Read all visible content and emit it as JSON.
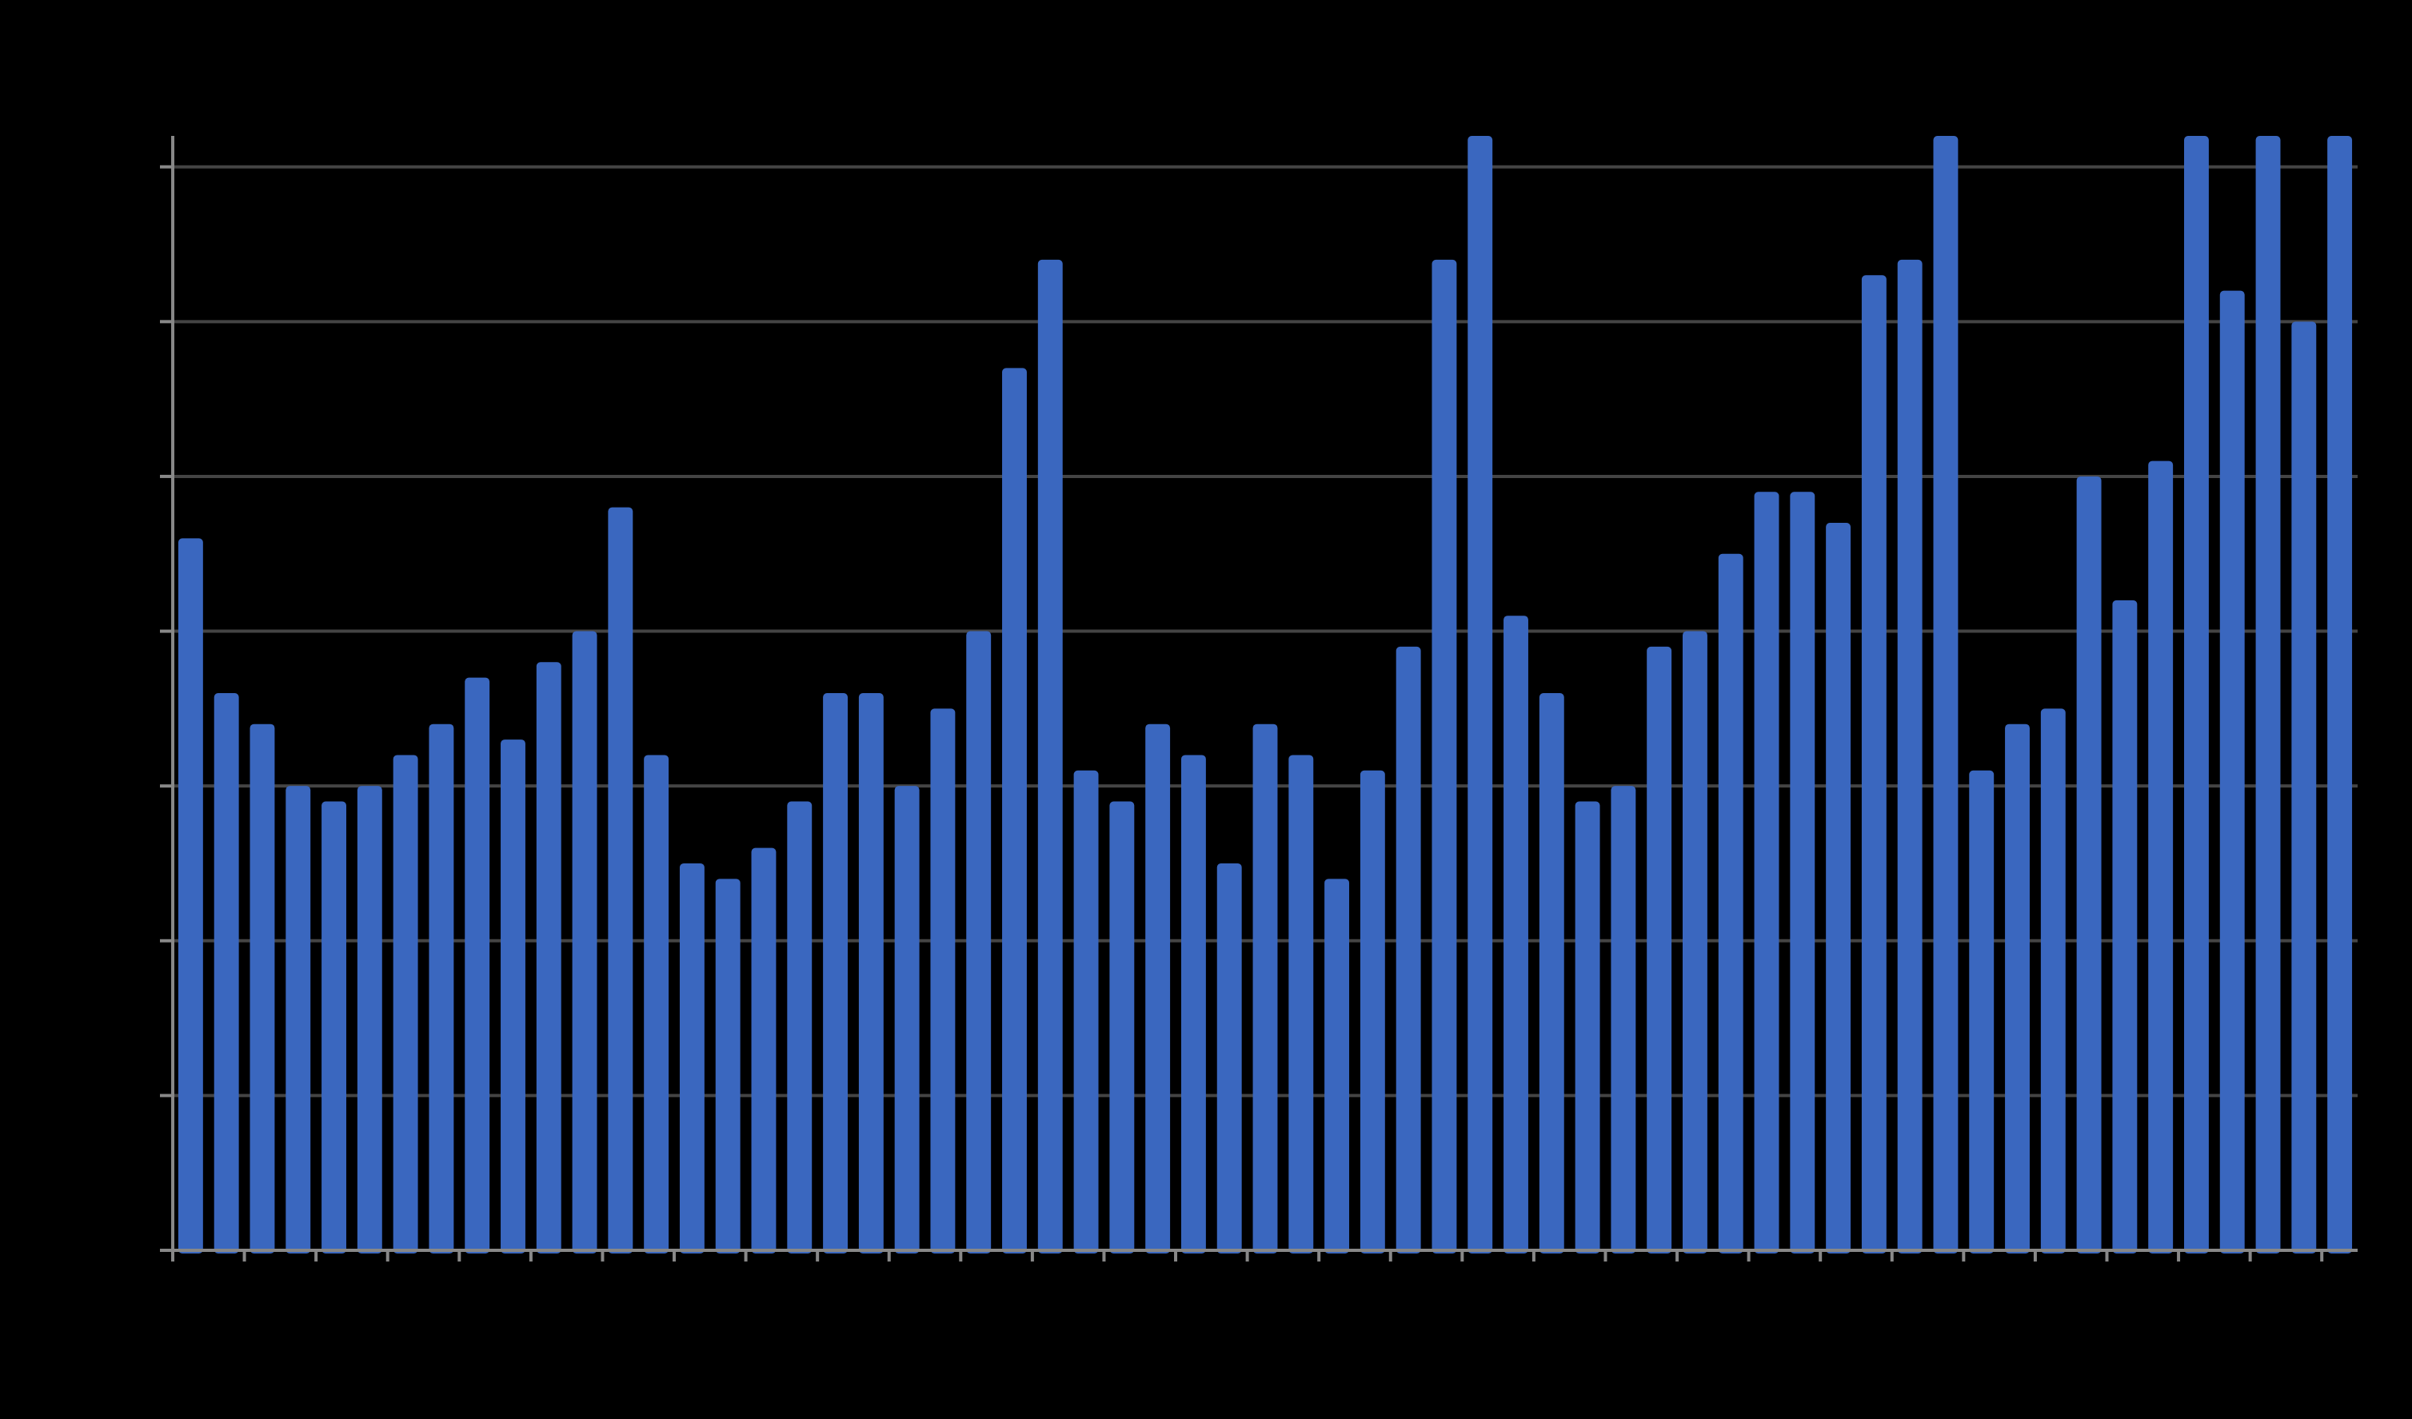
{
  "chart_data": {
    "type": "bar",
    "title": "",
    "xlabel": "",
    "ylabel": "",
    "ylim": [
      0,
      7.2
    ],
    "y_gridlines": [
      1,
      2,
      3,
      4,
      5,
      6,
      7
    ],
    "grid": true,
    "x_tick_every": 2,
    "bar_color": "#3a67bf",
    "background": "#000000",
    "values": [
      4.6,
      3.6,
      3.4,
      3.0,
      2.9,
      3.0,
      3.2,
      3.4,
      3.7,
      3.3,
      3.8,
      4.0,
      4.8,
      3.2,
      2.5,
      2.4,
      2.6,
      2.9,
      3.6,
      3.6,
      3.0,
      3.5,
      4.0,
      5.7,
      6.4,
      3.1,
      2.9,
      3.4,
      3.2,
      2.5,
      3.4,
      3.2,
      2.4,
      3.1,
      3.9,
      6.4,
      7.2,
      4.1,
      3.6,
      2.9,
      3.0,
      3.9,
      4.0,
      4.5,
      4.9,
      4.9,
      4.7,
      6.3,
      6.4,
      7.2,
      3.1,
      3.4,
      3.5,
      5.0,
      4.2,
      5.1,
      7.2,
      6.2,
      7.2,
      6.0,
      7.2
    ]
  }
}
